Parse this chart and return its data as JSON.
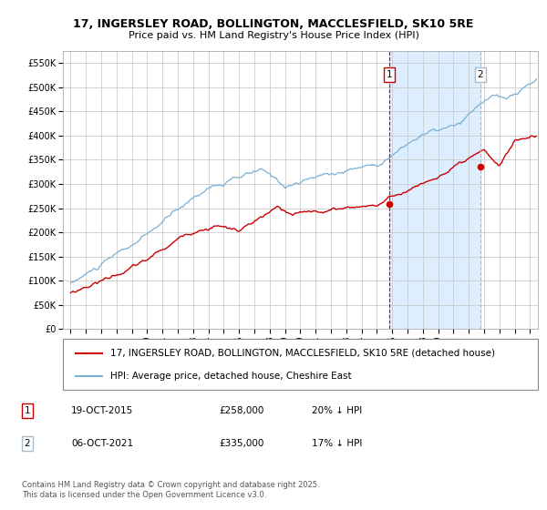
{
  "title_line1": "17, INGERSLEY ROAD, BOLLINGTON, MACCLESFIELD, SK10 5RE",
  "title_line2": "Price paid vs. HM Land Registry's House Price Index (HPI)",
  "background_color": "#ffffff",
  "plot_bg_color": "#ffffff",
  "highlight_bg_color": "#ddeeff",
  "grid_color": "#cccccc",
  "hpi_color": "#7bafd4",
  "price_color": "#cc0000",
  "marker_color": "#cc0000",
  "vline1_color": "#cc0000",
  "vline2_color": "#aabbcc",
  "purchase1_date_num": 2015.8,
  "purchase1_price": 258000,
  "purchase2_date_num": 2021.76,
  "purchase2_price": 335000,
  "ylim": [
    0,
    575000
  ],
  "xlim_start": 1994.5,
  "xlim_end": 2025.5,
  "yticks": [
    0,
    50000,
    100000,
    150000,
    200000,
    250000,
    300000,
    350000,
    400000,
    450000,
    500000,
    550000
  ],
  "ytick_labels": [
    "£0",
    "£50K",
    "£100K",
    "£150K",
    "£200K",
    "£250K",
    "£300K",
    "£350K",
    "£400K",
    "£450K",
    "£500K",
    "£550K"
  ],
  "xtick_years": [
    1995,
    1996,
    1997,
    1998,
    1999,
    2000,
    2001,
    2002,
    2003,
    2004,
    2005,
    2006,
    2007,
    2008,
    2009,
    2010,
    2011,
    2012,
    2013,
    2014,
    2015,
    2016,
    2017,
    2018,
    2019,
    2020,
    2021,
    2022,
    2023,
    2024,
    2025
  ],
  "legend_label1": "17, INGERSLEY ROAD, BOLLINGTON, MACCLESFIELD, SK10 5RE (detached house)",
  "legend_label2": "HPI: Average price, detached house, Cheshire East",
  "annotation1_num": "1",
  "annotation1_date": "19-OCT-2015",
  "annotation1_price": "£258,000",
  "annotation1_hpi": "20% ↓ HPI",
  "annotation2_num": "2",
  "annotation2_date": "06-OCT-2021",
  "annotation2_price": "£335,000",
  "annotation2_hpi": "17% ↓ HPI",
  "footer": "Contains HM Land Registry data © Crown copyright and database right 2025.\nThis data is licensed under the Open Government Licence v3.0.",
  "title_fontsize": 9,
  "subtitle_fontsize": 8,
  "tick_fontsize": 7,
  "legend_fontsize": 7.5,
  "annotation_fontsize": 7.5,
  "footer_fontsize": 6
}
